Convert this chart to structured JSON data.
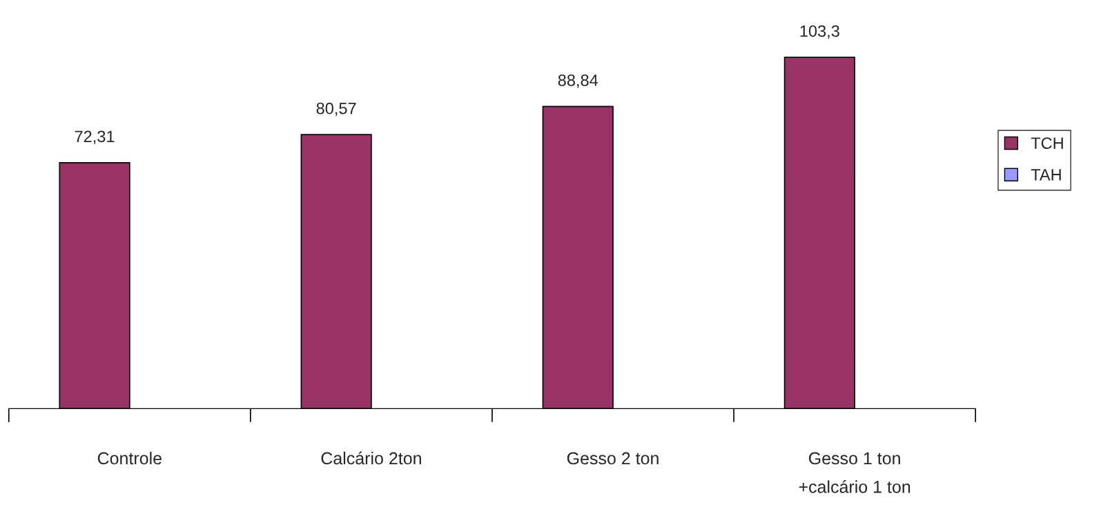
{
  "chart_data": {
    "type": "bar",
    "categories": [
      "Controle",
      "Calcário 2ton",
      "Gesso 2 ton",
      "Gesso 1 ton\n+calcário 1 ton"
    ],
    "series": [
      {
        "name": "TCH",
        "color": "#993366",
        "values": [
          72.31,
          80.57,
          88.84,
          103.3
        ],
        "value_labels": [
          "72,31",
          "80,57",
          "88,84",
          "103,3"
        ]
      },
      {
        "name": "TAH",
        "color": "#9999ff",
        "values": [
          null,
          null,
          null,
          null
        ]
      }
    ],
    "legend": "right",
    "grid": false
  }
}
